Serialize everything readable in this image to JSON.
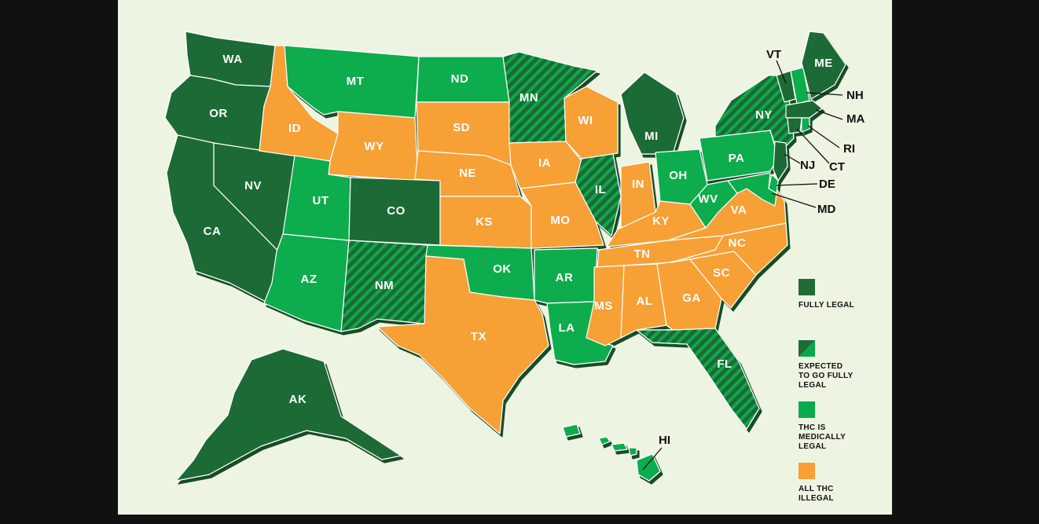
{
  "colors": {
    "background": "#eef4e2",
    "outer": "#111111",
    "fully_legal": "#1f6b35",
    "expected": "#1f6b35",
    "expected_stripe": "#08a84b",
    "medical": "#08ac4d",
    "illegal": "#f6a035"
  },
  "legend": [
    {
      "key": "fully_legal",
      "label": "FULLY LEGAL",
      "icon": "solid-dark-green-square"
    },
    {
      "key": "expected",
      "label": "EXPECTED\nTO GO FULLY\nLEGAL",
      "icon": "diagonal-half-square"
    },
    {
      "key": "medical",
      "label": "THC IS\nMEDICALLY\nLEGAL",
      "icon": "solid-green-square"
    },
    {
      "key": "illegal",
      "label": "ALL THC\nILLEGAL",
      "icon": "solid-orange-square"
    }
  ],
  "states": {
    "WA": {
      "label": "WA",
      "status": "fully_legal"
    },
    "OR": {
      "label": "OR",
      "status": "fully_legal"
    },
    "CA": {
      "label": "CA",
      "status": "fully_legal"
    },
    "NV": {
      "label": "NV",
      "status": "fully_legal"
    },
    "ID": {
      "label": "ID",
      "status": "illegal"
    },
    "MT": {
      "label": "MT",
      "status": "medical"
    },
    "WY": {
      "label": "WY",
      "status": "illegal"
    },
    "UT": {
      "label": "UT",
      "status": "medical"
    },
    "CO": {
      "label": "CO",
      "status": "fully_legal"
    },
    "AZ": {
      "label": "AZ",
      "status": "medical"
    },
    "NM": {
      "label": "NM",
      "status": "expected"
    },
    "ND": {
      "label": "ND",
      "status": "medical"
    },
    "SD": {
      "label": "SD",
      "status": "illegal"
    },
    "NE": {
      "label": "NE",
      "status": "illegal"
    },
    "KS": {
      "label": "KS",
      "status": "illegal"
    },
    "OK": {
      "label": "OK",
      "status": "medical"
    },
    "TX": {
      "label": "TX",
      "status": "illegal"
    },
    "MN": {
      "label": "MN",
      "status": "expected"
    },
    "IA": {
      "label": "IA",
      "status": "illegal"
    },
    "MO": {
      "label": "MO",
      "status": "illegal"
    },
    "AR": {
      "label": "AR",
      "status": "medical"
    },
    "LA": {
      "label": "LA",
      "status": "medical"
    },
    "WI": {
      "label": "WI",
      "status": "illegal"
    },
    "IL": {
      "label": "IL",
      "status": "expected"
    },
    "MI": {
      "label": "MI",
      "status": "fully_legal"
    },
    "IN": {
      "label": "IN",
      "status": "illegal"
    },
    "OH": {
      "label": "OH",
      "status": "medical"
    },
    "KY": {
      "label": "KY",
      "status": "illegal"
    },
    "TN": {
      "label": "TN",
      "status": "illegal"
    },
    "MS": {
      "label": "MS",
      "status": "illegal"
    },
    "AL": {
      "label": "AL",
      "status": "illegal"
    },
    "GA": {
      "label": "GA",
      "status": "illegal"
    },
    "FL": {
      "label": "FL",
      "status": "expected"
    },
    "SC": {
      "label": "SC",
      "status": "illegal"
    },
    "NC": {
      "label": "NC",
      "status": "illegal"
    },
    "VA": {
      "label": "VA",
      "status": "illegal"
    },
    "WV": {
      "label": "WV",
      "status": "medical"
    },
    "PA": {
      "label": "PA",
      "status": "medical"
    },
    "NY": {
      "label": "NY",
      "status": "expected"
    },
    "VT": {
      "label": "VT",
      "status": "fully_legal"
    },
    "NH": {
      "label": "NH",
      "status": "medical"
    },
    "ME": {
      "label": "ME",
      "status": "fully_legal"
    },
    "MA": {
      "label": "MA",
      "status": "fully_legal"
    },
    "RI": {
      "label": "RI",
      "status": "medical"
    },
    "CT": {
      "label": "CT",
      "status": "fully_legal"
    },
    "NJ": {
      "label": "NJ",
      "status": "fully_legal"
    },
    "DE": {
      "label": "DE",
      "status": "medical"
    },
    "MD": {
      "label": "MD",
      "status": "medical"
    },
    "AK": {
      "label": "AK",
      "status": "fully_legal"
    },
    "HI": {
      "label": "HI",
      "status": "medical"
    }
  }
}
